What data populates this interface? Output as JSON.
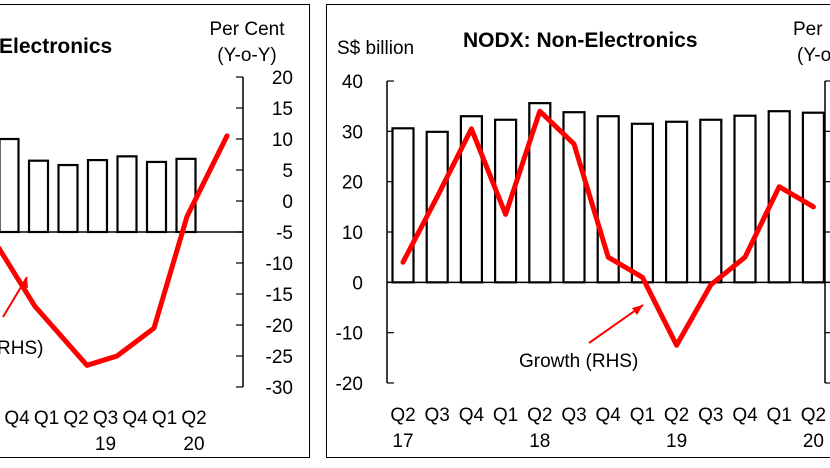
{
  "chart_data": [
    {
      "type": "bar",
      "title": "Electronics",
      "y2label_line1": "Per Cent",
      "y2label_line2": "(Y-o-Y)",
      "bar_color": "#ffffff",
      "bar_stroke": "#000000",
      "line_color": "#ff0000",
      "categories": [
        "Q4",
        "Q1",
        "Q2",
        "Q3",
        "Q4",
        "Q1",
        "Q2"
      ],
      "year_labels": [
        {
          "category_index": 3,
          "text": "19"
        },
        {
          "category_index": 6,
          "text": "20"
        }
      ],
      "bar_values_rhs_units": [
        10,
        6.5,
        5.8,
        6.6,
        7.2,
        6.3,
        6.8
      ],
      "series": [
        {
          "name": "Growth (RHS)",
          "axis": "right",
          "type": "line",
          "values": [
            -3.5,
            -17,
            -26.5,
            -25,
            -20.5,
            -2.5,
            10.5
          ]
        }
      ],
      "y2lim": [
        -30,
        20
      ],
      "y2ticks": [
        "20",
        "15",
        "10",
        "5",
        "0",
        "-5",
        "-10",
        "-15",
        "-20",
        "-25",
        "-30"
      ],
      "annotation": "RHS)"
    },
    {
      "type": "bar",
      "title": "NODX: Non-Electronics",
      "ylabel": "S$ billion",
      "y2label_line1": "Per",
      "y2label_line2": "(Y-o",
      "bar_color": "#ffffff",
      "bar_stroke": "#000000",
      "line_color": "#ff0000",
      "categories": [
        "Q2",
        "Q3",
        "Q4",
        "Q1",
        "Q2",
        "Q3",
        "Q4",
        "Q1",
        "Q2",
        "Q3",
        "Q4",
        "Q1",
        "Q2"
      ],
      "year_labels": [
        {
          "category_index": 0,
          "text": "17"
        },
        {
          "category_index": 4,
          "text": "18"
        },
        {
          "category_index": 8,
          "text": "19"
        },
        {
          "category_index": 12,
          "text": "20"
        }
      ],
      "values": [
        30.6,
        29.9,
        33.0,
        32.3,
        35.6,
        33.8,
        33.0,
        31.5,
        31.9,
        32.3,
        33.1,
        34.0,
        33.7
      ],
      "ylim": [
        -20,
        40
      ],
      "yticks": [
        "40",
        "30",
        "20",
        "10",
        "0",
        "-10",
        "-20"
      ],
      "series": [
        {
          "name": "Growth (RHS)",
          "axis": "left_scaled",
          "type": "line",
          "values_left_units": [
            4,
            17,
            30.5,
            13.5,
            34,
            27.5,
            5,
            1,
            -12.5,
            -0.5,
            5,
            19,
            15
          ]
        }
      ],
      "annotation": "Growth (RHS)"
    }
  ]
}
